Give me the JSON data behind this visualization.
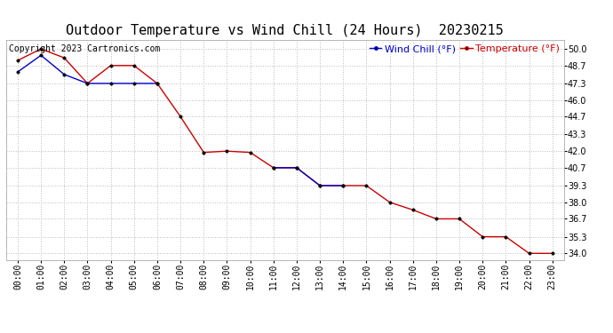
{
  "title": "Outdoor Temperature vs Wind Chill (24 Hours)  20230215",
  "copyright": "Copyright 2023 Cartronics.com",
  "legend_wind_chill": "Wind Chill (°F)",
  "legend_temp": "Temperature (°F)",
  "x_labels": [
    "00:00",
    "01:00",
    "02:00",
    "03:00",
    "04:00",
    "05:00",
    "06:00",
    "07:00",
    "08:00",
    "09:00",
    "10:00",
    "11:00",
    "12:00",
    "13:00",
    "14:00",
    "15:00",
    "16:00",
    "17:00",
    "18:00",
    "19:00",
    "20:00",
    "21:00",
    "22:00",
    "23:00"
  ],
  "temperature": [
    49.1,
    50.0,
    49.3,
    47.3,
    48.7,
    48.7,
    47.3,
    44.7,
    41.9,
    42.0,
    41.9,
    40.7,
    40.7,
    39.3,
    39.3,
    39.3,
    38.0,
    37.4,
    36.7,
    36.7,
    35.3,
    35.3,
    34.0,
    34.0
  ],
  "wind_chill": [
    48.2,
    49.5,
    48.0,
    47.3,
    47.3,
    47.3,
    47.3,
    null,
    null,
    null,
    null,
    40.7,
    40.7,
    39.3,
    39.3,
    null,
    null,
    null,
    null,
    null,
    null,
    null,
    null,
    null
  ],
  "ylim_min": 33.5,
  "ylim_max": 50.7,
  "yticks": [
    34.0,
    35.3,
    36.7,
    38.0,
    39.3,
    40.7,
    42.0,
    43.3,
    44.7,
    46.0,
    47.3,
    48.7,
    50.0
  ],
  "temp_color": "#cc0000",
  "wind_chill_color": "#0000cc",
  "grid_color": "#bbbbbb",
  "background_color": "#ffffff",
  "title_fontsize": 11,
  "legend_fontsize": 8,
  "copyright_fontsize": 7,
  "tick_fontsize": 7,
  "marker_size": 2.5
}
